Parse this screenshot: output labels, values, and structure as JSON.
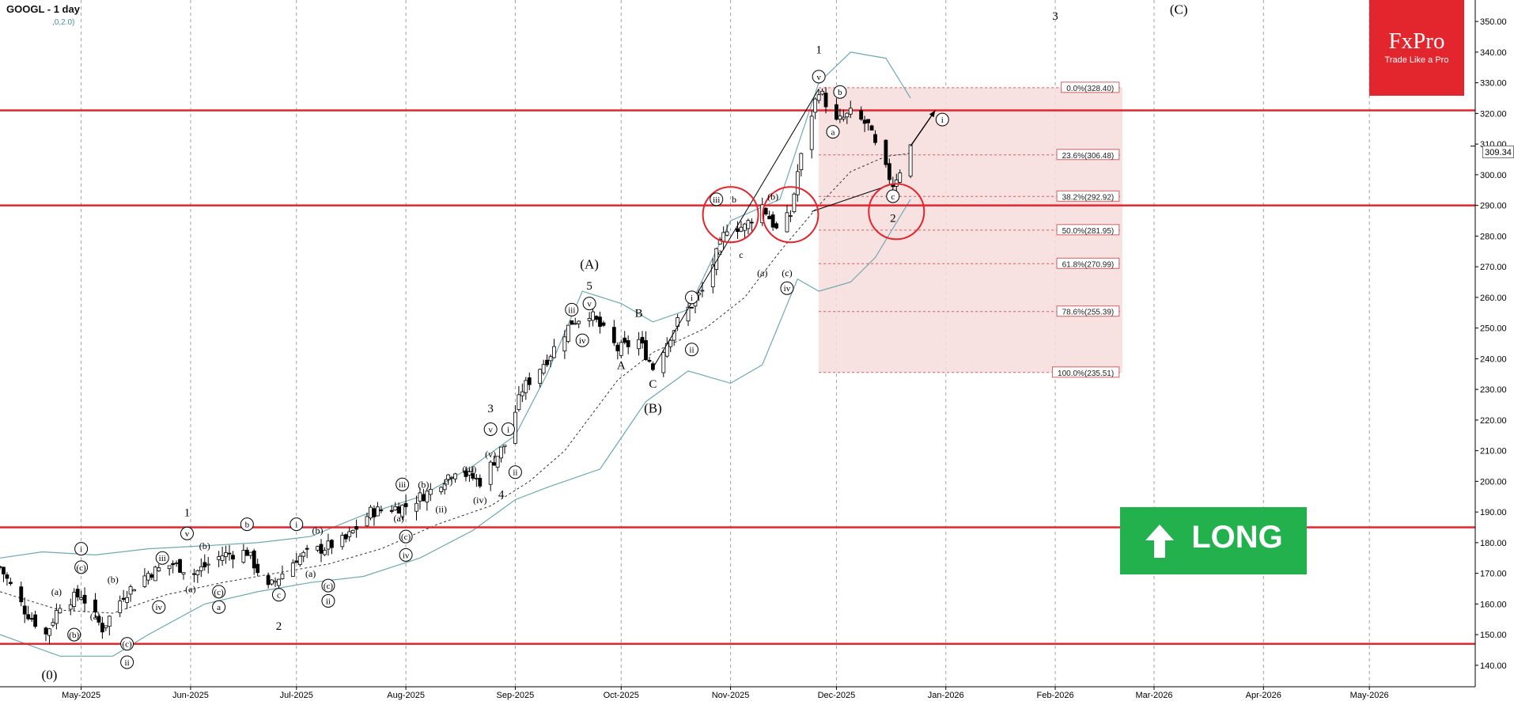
{
  "header": {
    "title": "GOOGL - 1 day",
    "params": ",0,2.0)"
  },
  "logo": {
    "name": "FxPro",
    "tagline": "Trade Like a Pro"
  },
  "long_button": {
    "label": "LONG",
    "icon": "arrow-up-icon",
    "color": "#22b14c"
  },
  "current_price_label": "309.34",
  "colors": {
    "resistance": "#e3262d",
    "bollinger": "#6fa8b0",
    "fib_zone": "#f6dcdc",
    "fib_line": "#d26060",
    "candle_up": "#ffffff",
    "candle_down": "#000000"
  },
  "chart_data": {
    "type": "candlestick",
    "symbol": "GOOGL",
    "timeframe": "1 day",
    "ylim": [
      133,
      357
    ],
    "y_ticks": [
      140,
      150,
      160,
      170,
      180,
      190,
      200,
      210,
      220,
      230,
      240,
      250,
      260,
      270,
      280,
      290,
      300,
      310,
      320,
      330,
      340,
      350
    ],
    "y_tick_labels": [
      "140.00",
      "150.00",
      "160.00",
      "170.00",
      "180.00",
      "190.00",
      "200.00",
      "210.00",
      "220.00",
      "230.00",
      "240.00",
      "250.00",
      "260.00",
      "270.00",
      "280.00",
      "290.00",
      "300.00",
      "310.00",
      "320.00",
      "330.00",
      "340.00",
      "350.00"
    ],
    "x_start": "2025-04-08",
    "x_end": "2026-05-31",
    "x_month_labels": [
      {
        "date": "2025-05-01",
        "label": "May-2025"
      },
      {
        "date": "2025-06-01",
        "label": "Jun-2025"
      },
      {
        "date": "2025-07-01",
        "label": "Jul-2025"
      },
      {
        "date": "2025-08-01",
        "label": "Aug-2025"
      },
      {
        "date": "2025-09-01",
        "label": "Sep-2025"
      },
      {
        "date": "2025-10-01",
        "label": "Oct-2025"
      },
      {
        "date": "2025-11-01",
        "label": "Nov-2025"
      },
      {
        "date": "2025-12-01",
        "label": "Dec-2025"
      },
      {
        "date": "2026-01-01",
        "label": "Jan-2026"
      },
      {
        "date": "2026-02-01",
        "label": "Feb-2026"
      },
      {
        "date": "2026-03-01",
        "label": "Mar-2026"
      },
      {
        "date": "2026-04-01",
        "label": "Apr-2026"
      },
      {
        "date": "2026-05-01",
        "label": "May-2026"
      }
    ],
    "price_path": [
      [
        "2025-04-08",
        172
      ],
      [
        "2025-04-15",
        158
      ],
      [
        "2025-04-21",
        150
      ],
      [
        "2025-04-25",
        160
      ],
      [
        "2025-05-01",
        163
      ],
      [
        "2025-05-07",
        152
      ],
      [
        "2025-05-13",
        163
      ],
      [
        "2025-05-20",
        170
      ],
      [
        "2025-05-27",
        173
      ],
      [
        "2025-06-02",
        170
      ],
      [
        "2025-06-10",
        176
      ],
      [
        "2025-06-17",
        177
      ],
      [
        "2025-06-23",
        165
      ],
      [
        "2025-07-01",
        175
      ],
      [
        "2025-07-08",
        178
      ],
      [
        "2025-07-15",
        181
      ],
      [
        "2025-07-22",
        190
      ],
      [
        "2025-08-01",
        192
      ],
      [
        "2025-08-08",
        197
      ],
      [
        "2025-08-15",
        204
      ],
      [
        "2025-08-22",
        200
      ],
      [
        "2025-08-29",
        212
      ],
      [
        "2025-09-03",
        230
      ],
      [
        "2025-09-10",
        240
      ],
      [
        "2025-09-17",
        252
      ],
      [
        "2025-09-22",
        255
      ],
      [
        "2025-09-30",
        243
      ],
      [
        "2025-10-06",
        246
      ],
      [
        "2025-10-10",
        237
      ],
      [
        "2025-10-17",
        252
      ],
      [
        "2025-10-24",
        262
      ],
      [
        "2025-10-31",
        283
      ],
      [
        "2025-11-05",
        283
      ],
      [
        "2025-11-10",
        290
      ],
      [
        "2025-11-14",
        282
      ],
      [
        "2025-11-18",
        287
      ],
      [
        "2025-11-20",
        301
      ],
      [
        "2025-11-24",
        320
      ],
      [
        "2025-11-26",
        328
      ],
      [
        "2025-12-01",
        317
      ],
      [
        "2025-12-05",
        320
      ],
      [
        "2025-12-10",
        316
      ],
      [
        "2025-12-13",
        306
      ],
      [
        "2025-12-17",
        297
      ],
      [
        "2025-12-20",
        304
      ],
      [
        "2025-12-22",
        309.34
      ]
    ],
    "projection": {
      "from": [
        "2025-12-22",
        309.34
      ],
      "to": [
        "2025-12-29",
        321
      ]
    },
    "impulse_lines": [
      [
        [
          "2025-10-10",
          237
        ],
        [
          "2025-11-26",
          328
        ]
      ],
      [
        [
          "2025-11-24",
          288
        ],
        [
          "2025-12-17",
          297
        ]
      ]
    ],
    "bollinger": {
      "upper": [
        [
          "2025-04-08",
          175
        ],
        [
          "2025-04-20",
          177
        ],
        [
          "2025-05-05",
          176
        ],
        [
          "2025-05-20",
          178
        ],
        [
          "2025-06-05",
          179
        ],
        [
          "2025-06-20",
          180
        ],
        [
          "2025-07-05",
          182
        ],
        [
          "2025-07-20",
          189
        ],
        [
          "2025-08-05",
          195
        ],
        [
          "2025-08-20",
          205
        ],
        [
          "2025-09-01",
          215
        ],
        [
          "2025-09-10",
          235
        ],
        [
          "2025-09-20",
          262
        ],
        [
          "2025-10-01",
          258
        ],
        [
          "2025-10-10",
          252
        ],
        [
          "2025-10-20",
          256
        ],
        [
          "2025-11-01",
          285
        ],
        [
          "2025-11-15",
          292
        ],
        [
          "2025-11-26",
          330
        ],
        [
          "2025-12-05",
          340
        ],
        [
          "2025-12-15",
          338
        ],
        [
          "2025-12-22",
          325
        ]
      ],
      "middle": [
        [
          "2025-04-08",
          164
        ],
        [
          "2025-04-25",
          158
        ],
        [
          "2025-05-10",
          157
        ],
        [
          "2025-05-25",
          163
        ],
        [
          "2025-06-10",
          167
        ],
        [
          "2025-06-25",
          170
        ],
        [
          "2025-07-10",
          173
        ],
        [
          "2025-07-25",
          178
        ],
        [
          "2025-08-10",
          186
        ],
        [
          "2025-08-25",
          192
        ],
        [
          "2025-09-05",
          200
        ],
        [
          "2025-09-15",
          210
        ],
        [
          "2025-09-30",
          233
        ],
        [
          "2025-10-10",
          242
        ],
        [
          "2025-10-25",
          250
        ],
        [
          "2025-11-05",
          260
        ],
        [
          "2025-11-15",
          275
        ],
        [
          "2025-11-26",
          290
        ],
        [
          "2025-12-05",
          301
        ],
        [
          "2025-12-15",
          306
        ],
        [
          "2025-12-22",
          307
        ]
      ],
      "lower": [
        [
          "2025-04-08",
          150
        ],
        [
          "2025-04-25",
          143
        ],
        [
          "2025-05-10",
          143
        ],
        [
          "2025-05-20",
          150
        ],
        [
          "2025-06-05",
          160
        ],
        [
          "2025-06-20",
          164
        ],
        [
          "2025-07-05",
          167
        ],
        [
          "2025-07-20",
          169
        ],
        [
          "2025-08-05",
          175
        ],
        [
          "2025-08-20",
          184
        ],
        [
          "2025-09-01",
          194
        ],
        [
          "2025-09-10",
          198
        ],
        [
          "2025-09-25",
          204
        ],
        [
          "2025-10-08",
          226
        ],
        [
          "2025-10-20",
          236
        ],
        [
          "2025-11-01",
          232
        ],
        [
          "2025-11-10",
          238
        ],
        [
          "2025-11-20",
          266
        ],
        [
          "2025-11-26",
          262
        ],
        [
          "2025-12-05",
          265
        ],
        [
          "2025-12-12",
          273
        ],
        [
          "2025-12-22",
          292
        ]
      ]
    },
    "resistance_levels": [
      321,
      290,
      185,
      147
    ],
    "fib_zone": {
      "start": "2025-11-26",
      "end": "2026-02-20",
      "top": 328.4,
      "bottom": 235.51
    },
    "fib_levels": [
      {
        "label": "0.0%(328.40)",
        "value": 328.4
      },
      {
        "label": "23.6%(306.48)",
        "value": 306.48
      },
      {
        "label": "38.2%(292.92)",
        "value": 292.92
      },
      {
        "label": "50.0%(281.95)",
        "value": 281.95
      },
      {
        "label": "61.8%(270.99)",
        "value": 270.99
      },
      {
        "label": "78.6%(255.39)",
        "value": 255.39
      },
      {
        "label": "100.0%(235.51)",
        "value": 235.51
      }
    ],
    "highlight_circles": [
      [
        "2025-11-01",
        287
      ],
      [
        "2025-11-18",
        287
      ],
      [
        "2025-12-18",
        288
      ]
    ],
    "wave_labels": [
      {
        "text": "(0)",
        "date": "2025-04-22",
        "price": 137,
        "circled": false,
        "size": 17
      },
      {
        "text": "ii",
        "date": "2025-05-14",
        "price": 141,
        "circled": true,
        "size": 11
      },
      {
        "text": "(c)",
        "date": "2025-05-14",
        "price": 147,
        "circled": true,
        "size": 11
      },
      {
        "text": "(b)",
        "date": "2025-04-29",
        "price": 150,
        "circled": true,
        "size": 11
      },
      {
        "text": "(a)",
        "date": "2025-04-24",
        "price": 164,
        "circled": false,
        "size": 12
      },
      {
        "text": "(a)",
        "date": "2025-05-05",
        "price": 156,
        "circled": false,
        "size": 12
      },
      {
        "text": "i",
        "date": "2025-05-01",
        "price": 178,
        "circled": true,
        "size": 11
      },
      {
        "text": "(c)",
        "date": "2025-05-01",
        "price": 172,
        "circled": true,
        "size": 11
      },
      {
        "text": "(b)",
        "date": "2025-05-10",
        "price": 168,
        "circled": false,
        "size": 12
      },
      {
        "text": "iii",
        "date": "2025-05-24",
        "price": 175,
        "circled": true,
        "size": 11
      },
      {
        "text": "iv",
        "date": "2025-05-23",
        "price": 159,
        "circled": true,
        "size": 11
      },
      {
        "text": "(a)",
        "date": "2025-06-01",
        "price": 165,
        "circled": false,
        "size": 12
      },
      {
        "text": "1",
        "date": "2025-05-31",
        "price": 190,
        "circled": false,
        "size": 15
      },
      {
        "text": "v",
        "date": "2025-05-31",
        "price": 183,
        "circled": true,
        "size": 11
      },
      {
        "text": "(b)",
        "date": "2025-06-05",
        "price": 179,
        "circled": false,
        "size": 12
      },
      {
        "text": "(c)",
        "date": "2025-06-09",
        "price": 164,
        "circled": true,
        "size": 11
      },
      {
        "text": "a",
        "date": "2025-06-09",
        "price": 159,
        "circled": true,
        "size": 11
      },
      {
        "text": "b",
        "date": "2025-06-17",
        "price": 186,
        "circled": true,
        "size": 11
      },
      {
        "text": "c",
        "date": "2025-06-26",
        "price": 163,
        "circled": true,
        "size": 11
      },
      {
        "text": "2",
        "date": "2025-06-26",
        "price": 153,
        "circled": false,
        "size": 15
      },
      {
        "text": "i",
        "date": "2025-07-01",
        "price": 186,
        "circled": true,
        "size": 11
      },
      {
        "text": "(b)",
        "date": "2025-07-07",
        "price": 184,
        "circled": false,
        "size": 12
      },
      {
        "text": "(a)",
        "date": "2025-07-05",
        "price": 170,
        "circled": false,
        "size": 12
      },
      {
        "text": "(c)",
        "date": "2025-07-10",
        "price": 166,
        "circled": true,
        "size": 11
      },
      {
        "text": "ii",
        "date": "2025-07-10",
        "price": 161,
        "circled": true,
        "size": 11
      },
      {
        "text": "iii",
        "date": "2025-07-31",
        "price": 199,
        "circled": true,
        "size": 11
      },
      {
        "text": "(a)",
        "date": "2025-07-30",
        "price": 188,
        "circled": false,
        "size": 12
      },
      {
        "text": "(c)",
        "date": "2025-08-01",
        "price": 182,
        "circled": true,
        "size": 11
      },
      {
        "text": "iv",
        "date": "2025-08-01",
        "price": 176,
        "circled": true,
        "size": 11
      },
      {
        "text": "(b)",
        "date": "2025-08-06",
        "price": 199,
        "circled": false,
        "size": 12
      },
      {
        "text": "(ii)",
        "date": "2025-08-11",
        "price": 191,
        "circled": false,
        "size": 12
      },
      {
        "text": "(i)",
        "date": "2025-08-13",
        "price": 200,
        "circled": false,
        "size": 12
      },
      {
        "text": "(iii)",
        "date": "2025-08-19",
        "price": 204,
        "circled": false,
        "size": 12
      },
      {
        "text": "(iv)",
        "date": "2025-08-22",
        "price": 194,
        "circled": false,
        "size": 12
      },
      {
        "text": "(v)",
        "date": "2025-08-25",
        "price": 209,
        "circled": false,
        "size": 12
      },
      {
        "text": "3",
        "date": "2025-08-25",
        "price": 224,
        "circled": false,
        "size": 15
      },
      {
        "text": "v",
        "date": "2025-08-25",
        "price": 217,
        "circled": true,
        "size": 11
      },
      {
        "text": "4",
        "date": "2025-08-28",
        "price": 196,
        "circled": false,
        "size": 15
      },
      {
        "text": "i",
        "date": "2025-08-30",
        "price": 217,
        "circled": true,
        "size": 11
      },
      {
        "text": "ii",
        "date": "2025-09-01",
        "price": 203,
        "circled": true,
        "size": 11
      },
      {
        "text": "5",
        "date": "2025-09-22",
        "price": 264,
        "circled": false,
        "size": 15
      },
      {
        "text": "(A)",
        "date": "2025-09-22",
        "price": 271,
        "circled": false,
        "size": 17
      },
      {
        "text": "v",
        "date": "2025-09-22",
        "price": 258,
        "circled": true,
        "size": 11
      },
      {
        "text": "iii",
        "date": "2025-09-17",
        "price": 256,
        "circled": true,
        "size": 11
      },
      {
        "text": "iv",
        "date": "2025-09-20",
        "price": 246,
        "circled": true,
        "size": 11
      },
      {
        "text": "A",
        "date": "2025-10-01",
        "price": 238,
        "circled": false,
        "size": 15
      },
      {
        "text": "B",
        "date": "2025-10-06",
        "price": 255,
        "circled": false,
        "size": 15
      },
      {
        "text": "C",
        "date": "2025-10-10",
        "price": 232,
        "circled": false,
        "size": 15
      },
      {
        "text": "(B)",
        "date": "2025-10-10",
        "price": 224,
        "circled": false,
        "size": 17
      },
      {
        "text": "i",
        "date": "2025-10-21",
        "price": 260,
        "circled": true,
        "size": 11
      },
      {
        "text": "ii",
        "date": "2025-10-21",
        "price": 243,
        "circled": true,
        "size": 11
      },
      {
        "text": "iii",
        "date": "2025-10-28",
        "price": 292,
        "circled": true,
        "size": 11
      },
      {
        "text": "a",
        "date": "2025-10-29",
        "price": 275,
        "circled": false,
        "size": 12
      },
      {
        "text": "b",
        "date": "2025-11-02",
        "price": 292,
        "circled": false,
        "size": 12
      },
      {
        "text": "c",
        "date": "2025-11-04",
        "price": 274,
        "circled": false,
        "size": 12
      },
      {
        "text": "(a)",
        "date": "2025-11-10",
        "price": 268,
        "circled": false,
        "size": 12
      },
      {
        "text": "(b)",
        "date": "2025-11-13",
        "price": 293,
        "circled": false,
        "size": 12
      },
      {
        "text": "(c)",
        "date": "2025-11-17",
        "price": 268,
        "circled": false,
        "size": 12
      },
      {
        "text": "iv",
        "date": "2025-11-17",
        "price": 263,
        "circled": true,
        "size": 11
      },
      {
        "text": "1",
        "date": "2025-11-26",
        "price": 341,
        "circled": false,
        "size": 15
      },
      {
        "text": "v",
        "date": "2025-11-26",
        "price": 332,
        "circled": true,
        "size": 11
      },
      {
        "text": "a",
        "date": "2025-11-30",
        "price": 314,
        "circled": true,
        "size": 11
      },
      {
        "text": "b",
        "date": "2025-12-02",
        "price": 327,
        "circled": true,
        "size": 11
      },
      {
        "text": "c",
        "date": "2025-12-17",
        "price": 293,
        "circled": true,
        "size": 11
      },
      {
        "text": "2",
        "date": "2025-12-17",
        "price": 286,
        "circled": false,
        "size": 15
      },
      {
        "text": "i",
        "date": "2025-12-31",
        "price": 318,
        "circled": true,
        "size": 11
      },
      {
        "text": "3",
        "date": "2026-02-01",
        "price": 352,
        "circled": false,
        "size": 15
      },
      {
        "text": "(C)",
        "date": "2026-03-08",
        "price": 354,
        "circled": false,
        "size": 17
      }
    ]
  }
}
